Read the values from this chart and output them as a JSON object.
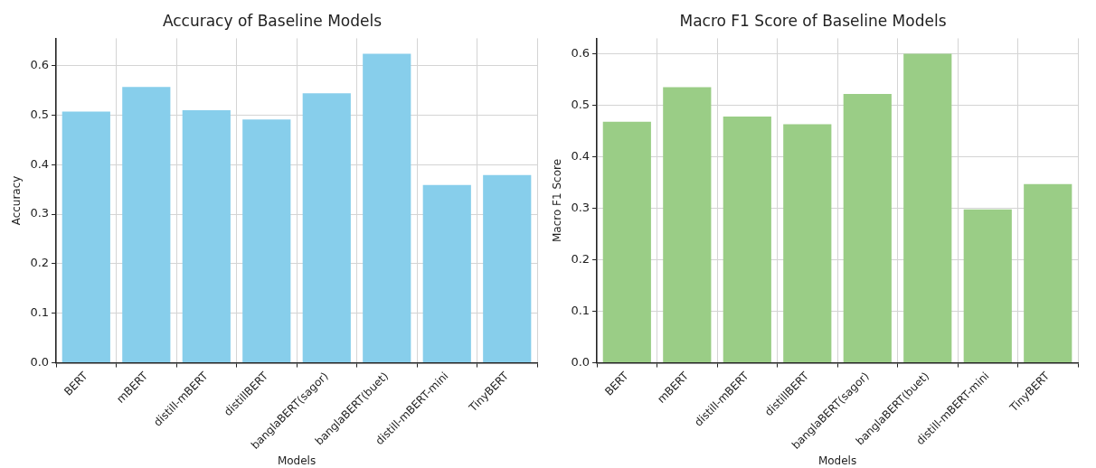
{
  "chart_data": [
    {
      "type": "bar",
      "title": "Accuracy of Baseline Models",
      "xlabel": "Models",
      "ylabel": "Accuracy",
      "categories": [
        "BERT",
        "mBERT",
        "distill-mBERT",
        "distillBERT",
        "banglaBERT(sagor)",
        "banglaBERT(buet)",
        "distill-mBERT-mini",
        "TinyBERT"
      ],
      "values": [
        0.507,
        0.557,
        0.51,
        0.491,
        0.544,
        0.624,
        0.359,
        0.379
      ],
      "color": "#87ceeb",
      "ylim": [
        0,
        0.655
      ],
      "yticks": [
        {
          "value": 0,
          "label": "0.0"
        },
        0.1,
        0.2,
        0.3,
        0.4,
        0.5,
        0.6
      ],
      "grid": true
    },
    {
      "type": "bar",
      "title": "Macro F1 Score of Baseline Models",
      "xlabel": "Models",
      "ylabel": "Macro F1 Score",
      "categories": [
        "BERT",
        "mBERT",
        "distill-mBERT",
        "distillBERT",
        "banglaBERT(sagor)",
        "banglaBERT(buet)",
        "distill-mBERT-mini",
        "TinyBERT"
      ],
      "values": [
        0.468,
        0.535,
        0.478,
        0.463,
        0.522,
        0.6,
        0.298,
        0.347
      ],
      "color": "#9acd86",
      "ylim": [
        0,
        0.63
      ],
      "yticks": [
        {
          "value": 0,
          "label": "0.0"
        },
        0.1,
        0.2,
        0.3,
        0.4,
        0.5,
        0.6
      ],
      "grid": true
    }
  ]
}
